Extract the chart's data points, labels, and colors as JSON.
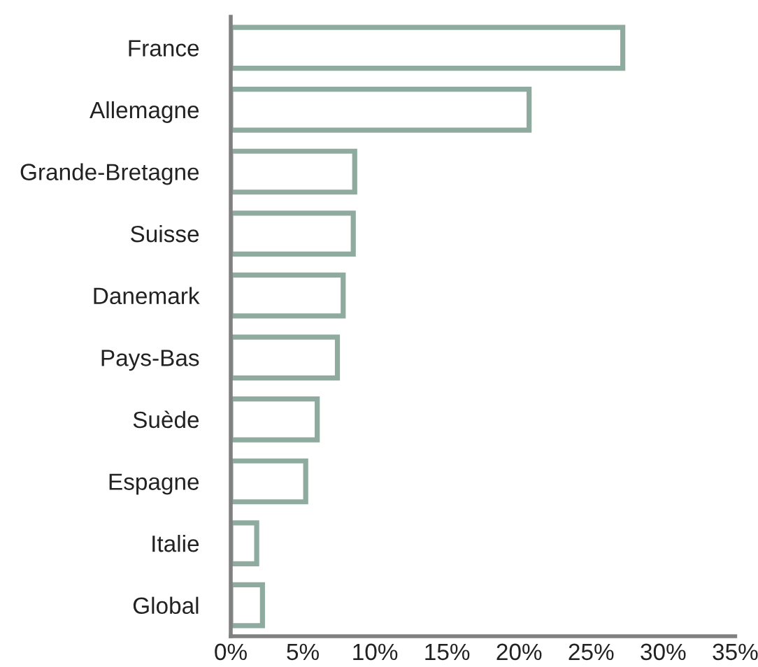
{
  "chart_data": {
    "type": "bar",
    "orientation": "horizontal",
    "categories": [
      "France",
      "Allemagne",
      "Grande-Bretagne",
      "Suisse",
      "Danemark",
      "Pays-Bas",
      "Suède",
      "Espagne",
      "Italie",
      "Global"
    ],
    "values": [
      27.2,
      20.7,
      8.6,
      8.5,
      7.8,
      7.4,
      6.0,
      5.2,
      1.8,
      2.2
    ],
    "color": "#8fab9f",
    "xlim": [
      0,
      35
    ],
    "xticks": [
      {
        "value": 0,
        "label": "0%"
      },
      {
        "value": 5,
        "label": "5%"
      },
      {
        "value": 10,
        "label": "10%"
      },
      {
        "value": 15,
        "label": "15%"
      },
      {
        "value": 20,
        "label": "20%"
      },
      {
        "value": 25,
        "label": "25%"
      },
      {
        "value": 30,
        "label": "30%"
      },
      {
        "value": 35,
        "label": "35%"
      }
    ],
    "grid": false
  }
}
